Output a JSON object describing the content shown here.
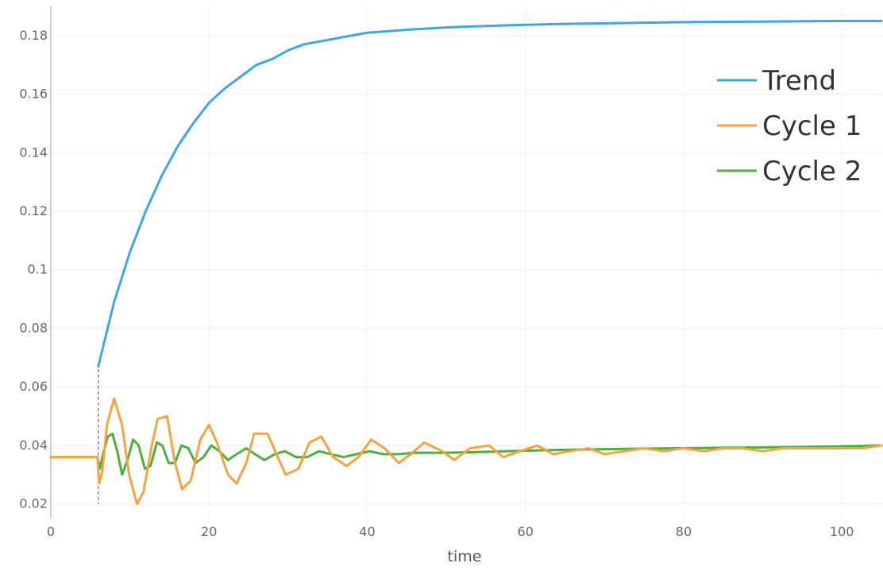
{
  "chart_data": {
    "type": "line",
    "title": "",
    "xlabel": "time",
    "ylabel": "",
    "xlim": [
      0,
      105
    ],
    "ylim": [
      0.015,
      0.19
    ],
    "x_ticks": [
      0,
      20,
      40,
      60,
      80,
      100
    ],
    "x_tick_labels": [
      "0",
      "20",
      "40",
      "60",
      "80",
      "100"
    ],
    "y_ticks": [
      0.02,
      0.04,
      0.06,
      0.08,
      0.1,
      0.12,
      0.14,
      0.16,
      0.18
    ],
    "y_tick_labels": [
      "0.02",
      "0.04",
      "0.06",
      "0.08",
      "0.1",
      "0.12",
      "0.14",
      "0.16",
      "0.18"
    ],
    "grid": true,
    "legend_position": "top-right",
    "event_marker_x": 6,
    "series": [
      {
        "name": "Trend",
        "color": "#3ea6e0",
        "x": [
          6,
          8,
          10,
          12,
          14,
          16,
          18,
          20,
          22,
          24,
          26,
          28,
          30,
          32,
          34,
          36,
          38,
          40,
          45,
          50,
          55,
          60,
          65,
          70,
          75,
          80,
          85,
          90,
          95,
          100,
          105
        ],
        "y": [
          0.067,
          0.089,
          0.106,
          0.12,
          0.132,
          0.142,
          0.15,
          0.157,
          0.162,
          0.166,
          0.17,
          0.172,
          0.175,
          0.177,
          0.178,
          0.179,
          0.18,
          0.181,
          0.182,
          0.1828,
          0.1833,
          0.1837,
          0.184,
          0.1842,
          0.1844,
          0.1846,
          0.1847,
          0.1848,
          0.1849,
          0.185,
          0.185
        ]
      },
      {
        "name": "Cycle 1",
        "color": "#f5a23f",
        "x": [
          0,
          5.9,
          6.1,
          6.5,
          7.1,
          8.0,
          9.0,
          9.9,
          10.9,
          11.7,
          12.7,
          13.5,
          14.7,
          15.7,
          16.6,
          17.7,
          18.9,
          20.0,
          21.0,
          22.4,
          23.5,
          24.7,
          25.7,
          27.4,
          28.7,
          29.7,
          31.3,
          32.7,
          34.2,
          35.7,
          37.4,
          38.9,
          40.5,
          42.2,
          44.0,
          45.5,
          47.2,
          49.5,
          51.0,
          53.0,
          55.4,
          57.2,
          59.3,
          61.5,
          63.5,
          65.5,
          68.0,
          70.0,
          72.5,
          75.0,
          77.5,
          80.0,
          82.5,
          85.0,
          87.5,
          90.0,
          92.5,
          95.0,
          97.5,
          100.0,
          102.5,
          105.0
        ],
        "y": [
          0.036,
          0.036,
          0.027,
          0.031,
          0.047,
          0.056,
          0.047,
          0.03,
          0.02,
          0.024,
          0.039,
          0.049,
          0.05,
          0.034,
          0.025,
          0.028,
          0.042,
          0.047,
          0.041,
          0.03,
          0.027,
          0.034,
          0.044,
          0.044,
          0.036,
          0.03,
          0.032,
          0.041,
          0.043,
          0.036,
          0.033,
          0.036,
          0.042,
          0.039,
          0.034,
          0.037,
          0.041,
          0.038,
          0.035,
          0.039,
          0.04,
          0.036,
          0.038,
          0.04,
          0.037,
          0.038,
          0.039,
          0.037,
          0.038,
          0.039,
          0.038,
          0.039,
          0.038,
          0.039,
          0.039,
          0.038,
          0.039,
          0.039,
          0.039,
          0.039,
          0.039,
          0.04
        ]
      },
      {
        "name": "Cycle 2",
        "color": "#4caf3e",
        "x": [
          0,
          5.9,
          6.2,
          6.6,
          7.2,
          7.8,
          8.4,
          9.0,
          9.7,
          10.4,
          11.1,
          11.9,
          12.6,
          13.4,
          14.1,
          14.9,
          15.7,
          16.5,
          17.4,
          18.3,
          19.3,
          20.3,
          21.3,
          22.4,
          23.5,
          24.7,
          25.8,
          27.0,
          28.3,
          29.6,
          31.0,
          32.4,
          33.9,
          35.4,
          37.0,
          38.6,
          40.3,
          42.0,
          44.0,
          46.0,
          50.0,
          55.0,
          60.0,
          65.0,
          70.0,
          75.0,
          80.0,
          85.0,
          90.0,
          95.0,
          100.0,
          105.0
        ],
        "y": [
          0.036,
          0.036,
          0.032,
          0.037,
          0.043,
          0.044,
          0.038,
          0.03,
          0.035,
          0.042,
          0.04,
          0.032,
          0.033,
          0.041,
          0.04,
          0.034,
          0.034,
          0.04,
          0.039,
          0.034,
          0.036,
          0.04,
          0.038,
          0.035,
          0.037,
          0.039,
          0.037,
          0.035,
          0.037,
          0.038,
          0.036,
          0.036,
          0.038,
          0.037,
          0.036,
          0.037,
          0.038,
          0.037,
          0.037,
          0.0375,
          0.0375,
          0.0378,
          0.0382,
          0.0385,
          0.0387,
          0.0389,
          0.039,
          0.0392,
          0.0393,
          0.0395,
          0.0397,
          0.04
        ]
      }
    ]
  }
}
